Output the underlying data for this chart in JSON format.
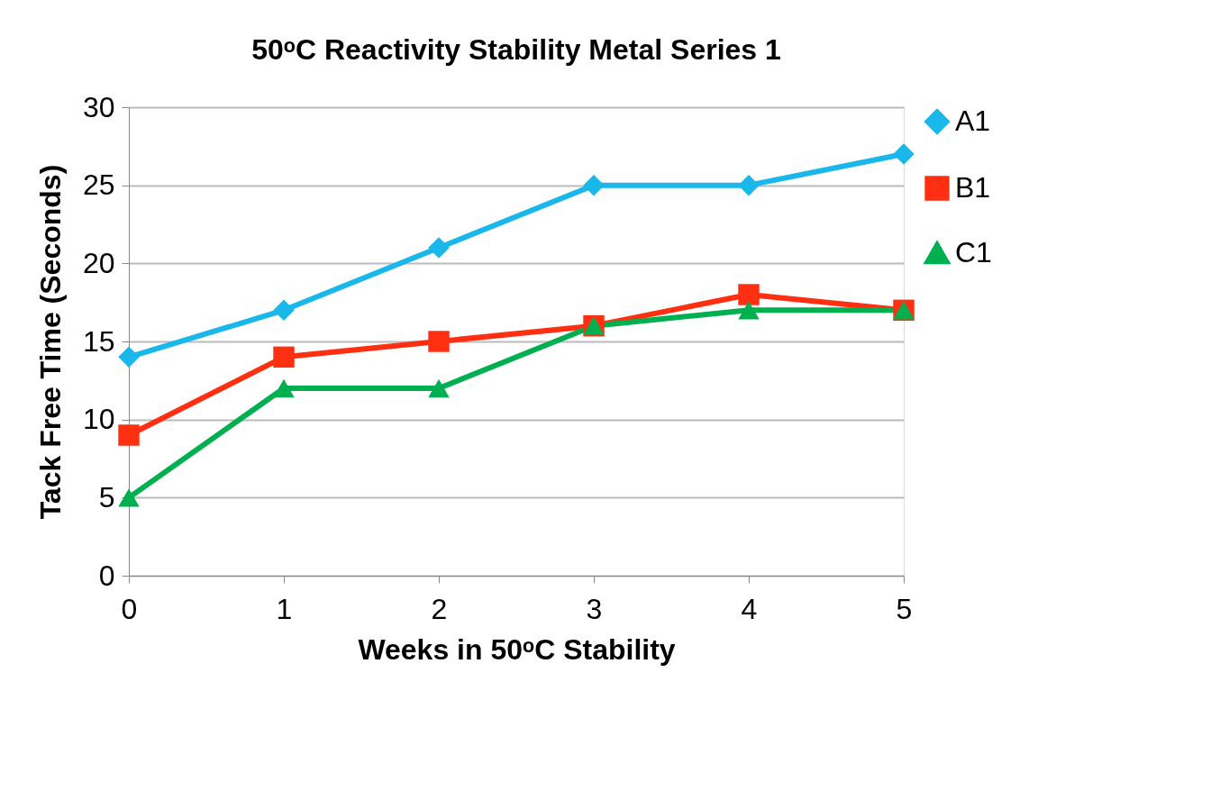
{
  "chart_data": {
    "type": "line",
    "title": "50ᵒC Reactivity Stability Metal Series 1",
    "xlabel": "Weeks in 50ᵒC Stability",
    "ylabel": "Tack Free Time (Seconds)",
    "x": [
      0,
      1,
      2,
      3,
      4,
      5
    ],
    "series": [
      {
        "name": "A1",
        "color": "#1ab8ea",
        "marker": "diamond",
        "values": [
          14,
          17,
          21,
          25,
          25,
          27
        ]
      },
      {
        "name": "B1",
        "color": "#ff2f12",
        "marker": "square",
        "values": [
          9,
          14,
          15,
          16,
          18,
          17
        ]
      },
      {
        "name": "C1",
        "color": "#00b050",
        "marker": "triangle",
        "values": [
          5,
          12,
          12,
          16,
          17,
          17
        ]
      }
    ],
    "xlim": [
      0,
      5
    ],
    "xticks": [
      0,
      1,
      2,
      3,
      4,
      5
    ],
    "ylim": [
      0,
      30
    ],
    "yticks": [
      0,
      5,
      10,
      15,
      20,
      25,
      30
    ],
    "grid": "y",
    "legend": "right",
    "line_style": "solid"
  }
}
